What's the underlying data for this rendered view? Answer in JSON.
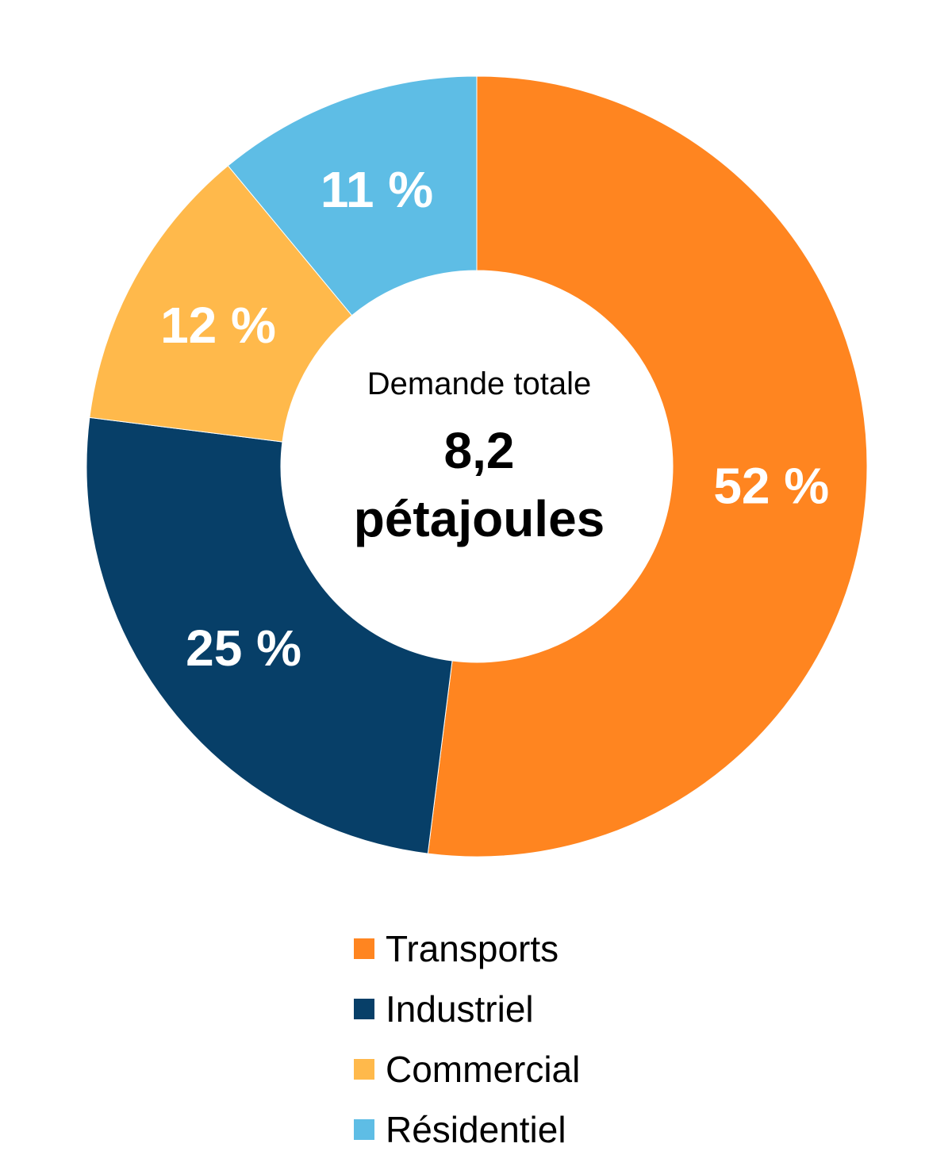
{
  "chart_data": {
    "type": "pie",
    "donut": true,
    "title": "",
    "center_text": {
      "caption": "Demande totale",
      "value_line1": "8,2",
      "value_line2": "pétajoules"
    },
    "categories": [
      "Transports",
      "Industriel",
      "Commercial",
      "Résidentiel"
    ],
    "values": [
      52,
      25,
      12,
      11
    ],
    "labels": [
      "52 %",
      "25 %",
      "12 %",
      "11 %"
    ],
    "colors": [
      "#FF8520",
      "#073F68",
      "#FFB94B",
      "#5EBDE5"
    ],
    "start_angle_deg": 0,
    "direction": "clockwise",
    "legend_position": "bottom"
  },
  "legend": {
    "items": [
      {
        "label": "Transports",
        "color": "#FF8520"
      },
      {
        "label": "Industriel",
        "color": "#073F68"
      },
      {
        "label": "Commercial",
        "color": "#FFB94B"
      },
      {
        "label": "Résidentiel",
        "color": "#5EBDE5"
      }
    ]
  }
}
